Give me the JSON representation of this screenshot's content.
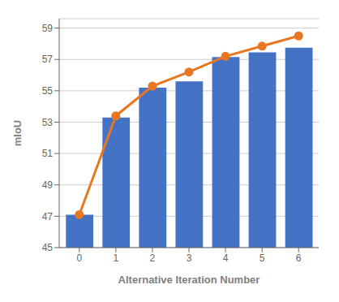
{
  "chart_data": {
    "type": "bar",
    "x": [
      0,
      1,
      2,
      3,
      4,
      5,
      6
    ],
    "xlabel": "Alternative Iteration Number",
    "ylabel": "mIoU",
    "xlim": [
      -0.55,
      6.55
    ],
    "xticks": [
      0,
      1,
      2,
      3,
      4,
      5,
      6
    ],
    "ylim": [
      45,
      59.6
    ],
    "yticks": [
      45,
      47,
      49,
      51,
      53,
      55,
      57,
      59
    ],
    "grid": true,
    "series": [
      {
        "type": "bar",
        "color": "#4472C4",
        "values": [
          47.1,
          53.3,
          55.2,
          55.6,
          57.15,
          57.45,
          57.75
        ]
      },
      {
        "type": "line",
        "color": "#E87722",
        "marker": "circle",
        "values": [
          47.1,
          53.4,
          55.3,
          56.2,
          57.2,
          57.85,
          58.5
        ]
      }
    ]
  }
}
